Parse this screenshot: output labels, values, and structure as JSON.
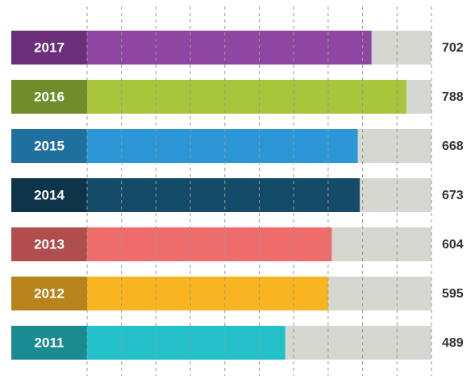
{
  "chart_data": {
    "type": "bar",
    "orientation": "horizontal",
    "categories": [
      "2017",
      "2016",
      "2015",
      "2014",
      "2013",
      "2012",
      "2011"
    ],
    "values": [
      702,
      788,
      668,
      673,
      604,
      595,
      489
    ],
    "colors": [
      "#8f45a2",
      "#a9c53b",
      "#2b97d6",
      "#134b68",
      "#ef6c6c",
      "#f9b521",
      "#23c0c9"
    ],
    "label_colors": [
      "#6b2f7b",
      "#718d2b",
      "#1f6f9f",
      "#0d3449",
      "#b04d4d",
      "#b8831a",
      "#1a8b91"
    ],
    "track_color": "#d7d7d1",
    "xlim": [
      0,
      850
    ],
    "xticks": [
      0,
      85,
      170,
      255,
      340,
      425,
      510,
      595,
      680,
      765,
      850
    ],
    "grid": true
  }
}
